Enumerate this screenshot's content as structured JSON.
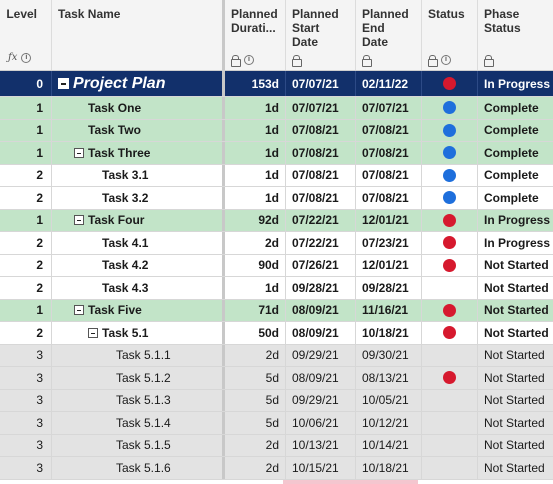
{
  "columns": {
    "level": "Level",
    "task_name": "Task Name",
    "planned_duration": "Planned Durati...",
    "planned_start": "Planned Start Date",
    "planned_end": "Planned End Date",
    "status": "Status",
    "phase_status": "Phase Status"
  },
  "colors": {
    "header_bg": "#f4f4f4",
    "project_row_bg": "#12306b",
    "summary_row_bg": "#c2e4c8",
    "grey_row_bg": "#e3e3e3",
    "status_red": "#d6192e",
    "status_blue": "#1e6fdc"
  },
  "rows": [
    {
      "level": "0",
      "task": "Project Plan",
      "duration": "153d",
      "start": "07/07/21",
      "end": "02/11/22",
      "status": "red",
      "phase": "In Progress"
    },
    {
      "level": "1",
      "task": "Task One",
      "duration": "1d",
      "start": "07/07/21",
      "end": "07/07/21",
      "status": "blue",
      "phase": "Complete"
    },
    {
      "level": "1",
      "task": "Task Two",
      "duration": "1d",
      "start": "07/08/21",
      "end": "07/08/21",
      "status": "blue",
      "phase": "Complete"
    },
    {
      "level": "1",
      "task": "Task Three",
      "duration": "1d",
      "start": "07/08/21",
      "end": "07/08/21",
      "status": "blue",
      "phase": "Complete"
    },
    {
      "level": "2",
      "task": "Task 3.1",
      "duration": "1d",
      "start": "07/08/21",
      "end": "07/08/21",
      "status": "blue",
      "phase": "Complete"
    },
    {
      "level": "2",
      "task": "Task 3.2",
      "duration": "1d",
      "start": "07/08/21",
      "end": "07/08/21",
      "status": "blue",
      "phase": "Complete"
    },
    {
      "level": "1",
      "task": "Task Four",
      "duration": "92d",
      "start": "07/22/21",
      "end": "12/01/21",
      "status": "red",
      "phase": "In Progress"
    },
    {
      "level": "2",
      "task": "Task 4.1",
      "duration": "2d",
      "start": "07/22/21",
      "end": "07/23/21",
      "status": "red",
      "phase": "In Progress"
    },
    {
      "level": "2",
      "task": "Task 4.2",
      "duration": "90d",
      "start": "07/26/21",
      "end": "12/01/21",
      "status": "red",
      "phase": "Not Started"
    },
    {
      "level": "2",
      "task": "Task 4.3",
      "duration": "1d",
      "start": "09/28/21",
      "end": "09/28/21",
      "status": "",
      "phase": "Not Started"
    },
    {
      "level": "1",
      "task": "Task Five",
      "duration": "71d",
      "start": "08/09/21",
      "end": "11/16/21",
      "status": "red",
      "phase": "Not Started"
    },
    {
      "level": "2",
      "task": "Task 5.1",
      "duration": "50d",
      "start": "08/09/21",
      "end": "10/18/21",
      "status": "red",
      "phase": "Not Started"
    },
    {
      "level": "3",
      "task": "Task 5.1.1",
      "duration": "2d",
      "start": "09/29/21",
      "end": "09/30/21",
      "status": "",
      "phase": "Not Started"
    },
    {
      "level": "3",
      "task": "Task 5.1.2",
      "duration": "5d",
      "start": "08/09/21",
      "end": "08/13/21",
      "status": "red",
      "phase": "Not Started"
    },
    {
      "level": "3",
      "task": "Task 5.1.3",
      "duration": "5d",
      "start": "09/29/21",
      "end": "10/05/21",
      "status": "",
      "phase": "Not Started"
    },
    {
      "level": "3",
      "task": "Task 5.1.4",
      "duration": "5d",
      "start": "10/06/21",
      "end": "10/12/21",
      "status": "",
      "phase": "Not Started"
    },
    {
      "level": "3",
      "task": "Task 5.1.5",
      "duration": "2d",
      "start": "10/13/21",
      "end": "10/14/21",
      "status": "",
      "phase": "Not Started"
    },
    {
      "level": "3",
      "task": "Task 5.1.6",
      "duration": "2d",
      "start": "10/15/21",
      "end": "10/18/21",
      "status": "",
      "phase": "Not Started"
    }
  ]
}
